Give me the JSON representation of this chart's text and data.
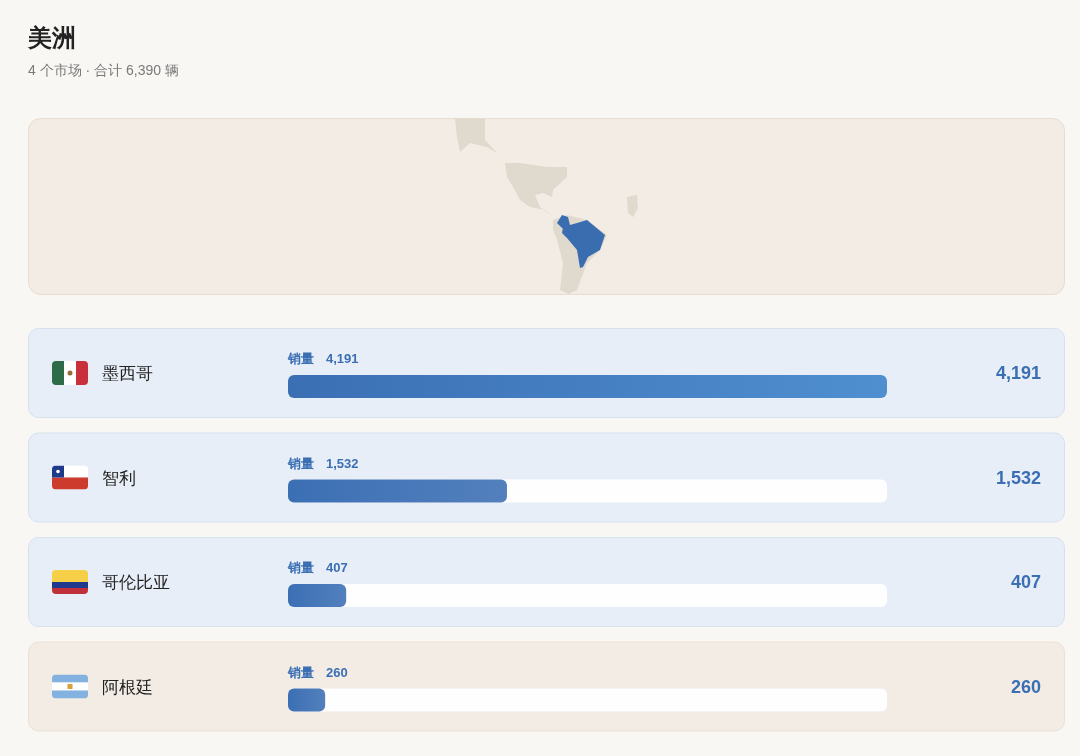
{
  "chart_data": {
    "type": "bar",
    "orientation": "horizontal",
    "title": "美洲",
    "subtitle": "4 个市场 · 合计 6,390 辆",
    "categories": [
      "墨西哥",
      "智利",
      "哥伦比亚",
      "阿根廷"
    ],
    "series": [
      {
        "name": "销量",
        "color": "#3b6fb4",
        "values": [
          4191,
          1532,
          407,
          260
        ],
        "value_labels": [
          "4,191",
          "1,532",
          "407",
          "260"
        ]
      }
    ]
  }
}
